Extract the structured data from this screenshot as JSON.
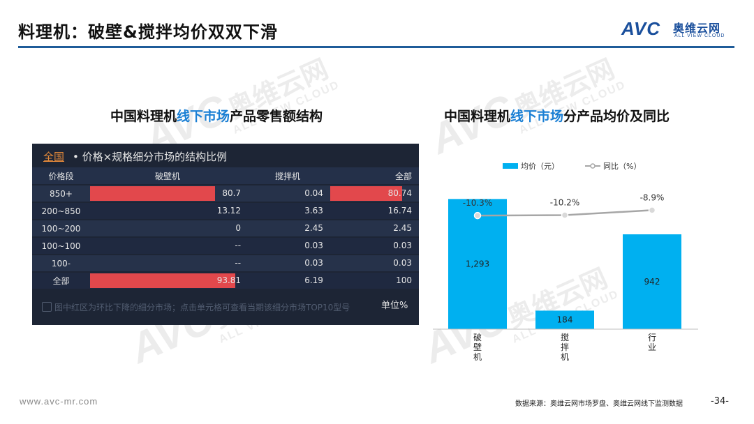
{
  "header": {
    "title": "料理机：破壁&搅拌均价双双下滑",
    "logo": {
      "mark": "AVC",
      "cn": "奥维云网",
      "en": "ALL VIEW CLOUD"
    }
  },
  "watermark": {
    "mark": "AVC",
    "cn": "奥维云网",
    "en": "ALL VIEW CLOUD"
  },
  "left_section": {
    "title_pre": "中国料理机",
    "title_hl": "线下市场",
    "title_post": "产品零售额结构",
    "panel": {
      "scope": "全国",
      "subtitle": " • 价格×规格细分市场的结构比例",
      "note": "图中红区为环比下降的细分市场；点击单元格可查看当期该细分市场TOP10型号",
      "unit": "单位%"
    }
  },
  "right_section": {
    "title_pre": "中国料理机",
    "title_hl": "线下市场",
    "title_post": "分产品均价及同比"
  },
  "chart_data": [
    {
      "type": "table",
      "columns": [
        "价格段",
        "破壁机",
        "搅拌机",
        "全部"
      ],
      "rows": [
        {
          "label": "850+",
          "values": [
            "80.7",
            "0.04",
            "80.74"
          ],
          "highlight": [
            true,
            false,
            true
          ],
          "bar_pct": [
            80.7,
            null,
            80.74
          ]
        },
        {
          "label": "200~850",
          "values": [
            "13.12",
            "3.63",
            "16.74"
          ],
          "highlight": [
            false,
            false,
            false
          ],
          "bar_pct": [
            null,
            null,
            null
          ]
        },
        {
          "label": "100~200",
          "values": [
            "0",
            "2.45",
            "2.45"
          ],
          "highlight": [
            false,
            false,
            false
          ],
          "bar_pct": [
            null,
            null,
            null
          ]
        },
        {
          "label": "100~100",
          "values": [
            "--",
            "0.03",
            "0.03"
          ],
          "highlight": [
            false,
            false,
            false
          ],
          "bar_pct": [
            null,
            null,
            null
          ]
        },
        {
          "label": "100-",
          "values": [
            "--",
            "0.03",
            "0.03"
          ],
          "highlight": [
            false,
            false,
            false
          ],
          "bar_pct": [
            null,
            null,
            null
          ]
        },
        {
          "label": "全部",
          "values": [
            "93.81",
            "6.19",
            "100"
          ],
          "highlight": [
            true,
            false,
            false
          ],
          "bar_pct": [
            93.81,
            null,
            null
          ]
        }
      ],
      "highlight_color": "#e2484c"
    },
    {
      "type": "bar",
      "categories": [
        "破壁机",
        "搅拌机",
        "行业"
      ],
      "series": [
        {
          "name": "均价（元）",
          "type": "bar",
          "values": [
            1293,
            184,
            942
          ],
          "labels": [
            "1,293",
            "184",
            "942"
          ],
          "color": "#00b0f0"
        },
        {
          "name": "同比（%）",
          "type": "line",
          "values": [
            -10.3,
            -10.2,
            -8.9
          ],
          "labels": [
            "-10.3%",
            "-10.2%",
            "-8.9%"
          ],
          "color": "#a6a6a6"
        }
      ],
      "ylim": [
        0,
        1330
      ],
      "y2lim": [
        -40,
        -5
      ],
      "legend": "top",
      "grid": false
    }
  ],
  "footer": {
    "url": "www.avc-mr.com",
    "source": "数据来源：奥维云网市场罗盘、奥维云网线下监测数据",
    "page": "-34-"
  }
}
